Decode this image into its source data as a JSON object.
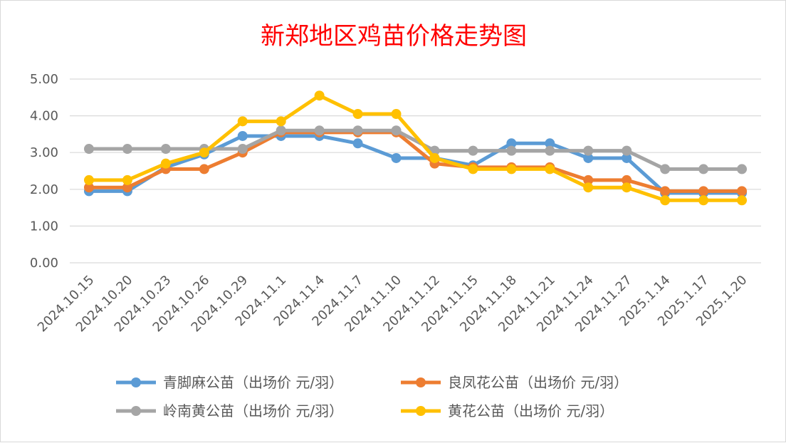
{
  "chart_data": {
    "type": "line",
    "title": "新郑地区鸡苗价格走势图",
    "xlabel": "",
    "ylabel": "",
    "ylim": [
      0,
      5
    ],
    "yticks": [
      "0.00",
      "1.00",
      "2.00",
      "3.00",
      "4.00",
      "5.00"
    ],
    "grid": true,
    "legend_position": "bottom",
    "categories": [
      "2024.10.15",
      "2024.10.20",
      "2024.10.23",
      "2024.10.26",
      "2024.10.29",
      "2024.11.1",
      "2024.11.4",
      "2024.11.7",
      "2024.11.10",
      "2024.11.12",
      "2024.11.15",
      "2024.11.18",
      "2024.11.21",
      "2024.11.24",
      "2024.11.27",
      "2025.1.14",
      "2025.1.17",
      "2025.1.20"
    ],
    "series": [
      {
        "name": "青脚麻公苗（出场价 元/羽）",
        "color": "#5b9bd5",
        "values": [
          1.95,
          1.95,
          2.6,
          2.95,
          3.45,
          3.45,
          3.45,
          3.25,
          2.85,
          2.85,
          2.65,
          3.25,
          3.25,
          2.85,
          2.85,
          1.9,
          1.9,
          1.9
        ]
      },
      {
        "name": "良凤花公苗（出场价 元/羽）",
        "color": "#ed7d31",
        "values": [
          2.05,
          2.05,
          2.55,
          2.55,
          3.0,
          3.55,
          3.55,
          3.55,
          3.55,
          2.7,
          2.6,
          2.6,
          2.6,
          2.25,
          2.25,
          1.95,
          1.95,
          1.95
        ]
      },
      {
        "name": "岭南黄公苗（出场价 元/羽）",
        "color": "#a5a5a5",
        "values": [
          3.1,
          3.1,
          3.1,
          3.1,
          3.1,
          3.6,
          3.6,
          3.6,
          3.6,
          3.05,
          3.05,
          3.05,
          3.05,
          3.05,
          3.05,
          2.55,
          2.55,
          2.55
        ]
      },
      {
        "name": "黄花公苗（出场价 元/羽）",
        "color": "#ffc000",
        "values": [
          2.25,
          2.25,
          2.7,
          3.0,
          3.85,
          3.85,
          4.55,
          4.05,
          4.05,
          2.85,
          2.55,
          2.55,
          2.55,
          2.05,
          2.05,
          1.7,
          1.7,
          1.7
        ]
      }
    ]
  }
}
